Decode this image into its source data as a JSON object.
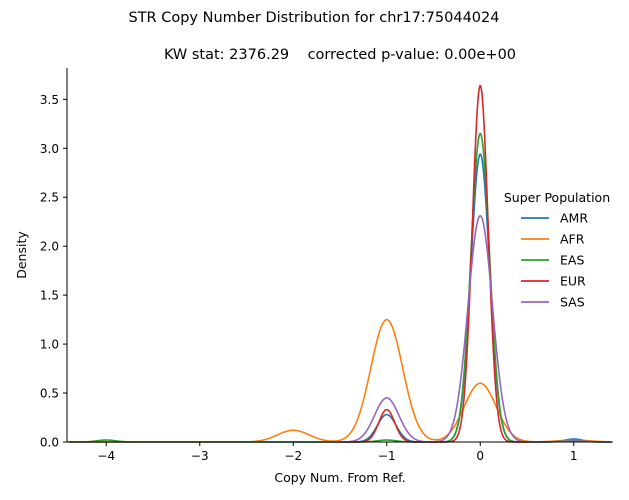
{
  "chart_data": {
    "type": "line",
    "title": "STR Copy Number Distribution for chr17:75044024",
    "subtitle": "KW stat: 2376.29    corrected p-value: 0.00e+00",
    "xlabel": "Copy Num. From Ref.",
    "ylabel": "Density",
    "xlim": [
      -4.42,
      1.42
    ],
    "ylim": [
      0,
      3.82
    ],
    "xticks": [
      -4,
      -3,
      -2,
      -1,
      0,
      1
    ],
    "xtick_labels": [
      "−4",
      "−3",
      "−2",
      "−1",
      "0",
      "1"
    ],
    "yticks": [
      0.0,
      0.5,
      1.0,
      1.5,
      2.0,
      2.5,
      3.0,
      3.5
    ],
    "ytick_labels": [
      "0.0",
      "0.5",
      "1.0",
      "1.5",
      "2.0",
      "2.5",
      "3.0",
      "3.5"
    ],
    "grid": false,
    "legend": {
      "title": "Super Population",
      "placement": "right"
    },
    "series": [
      {
        "name": "AMR",
        "color": "#1f77b4",
        "x_range": [
          -4.4,
          1.4
        ],
        "components": [
          {
            "center": -1,
            "sigma": 0.1,
            "height": 0.28
          },
          {
            "center": 0,
            "sigma": 0.1,
            "height": 2.94
          },
          {
            "center": 1,
            "sigma": 0.1,
            "height": 0.03
          }
        ]
      },
      {
        "name": "AFR",
        "color": "#ff7f0e",
        "x_range": [
          -4.4,
          1.4
        ],
        "components": [
          {
            "center": -2,
            "sigma": 0.17,
            "height": 0.12
          },
          {
            "center": -1,
            "sigma": 0.17,
            "height": 1.25
          },
          {
            "center": 0,
            "sigma": 0.17,
            "height": 0.6
          },
          {
            "center": 1,
            "sigma": 0.17,
            "height": 0.02
          }
        ]
      },
      {
        "name": "EAS",
        "color": "#2ca02c",
        "x_range": [
          -4.4,
          1.4
        ],
        "components": [
          {
            "center": -4,
            "sigma": 0.1,
            "height": 0.02
          },
          {
            "center": -1,
            "sigma": 0.1,
            "height": 0.02
          },
          {
            "center": 0,
            "sigma": 0.1,
            "height": 3.15
          },
          {
            "center": 1,
            "sigma": 0.1,
            "height": 0.02
          }
        ]
      },
      {
        "name": "EUR",
        "color": "#d62728",
        "x_range": [
          -1.5,
          0.5
        ],
        "components": [
          {
            "center": -1,
            "sigma": 0.085,
            "height": 0.33
          },
          {
            "center": 0,
            "sigma": 0.085,
            "height": 3.64
          }
        ]
      },
      {
        "name": "SAS",
        "color": "#9467bd",
        "x_range": [
          -1.5,
          1.4
        ],
        "components": [
          {
            "center": -1,
            "sigma": 0.13,
            "height": 0.45
          },
          {
            "center": 0,
            "sigma": 0.13,
            "height": 2.31
          },
          {
            "center": 1,
            "sigma": 0.13,
            "height": 0.01
          }
        ]
      }
    ]
  }
}
